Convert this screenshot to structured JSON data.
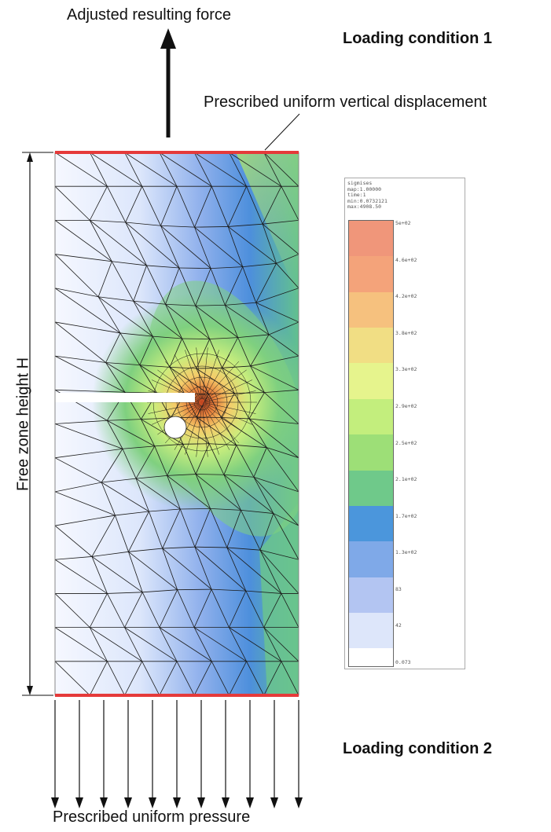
{
  "title_top": "Adjusted resulting force",
  "loading_condition_1": "Loading condition 1",
  "loading_condition_2": "Loading condition 2",
  "top_bc_label": "Prescribed uniform vertical displacement",
  "bottom_bc_label": "Prescribed uniform pressure",
  "height_label": "Free zone height H",
  "legend": {
    "lines": [
      "sigmises",
      "map:1.00000",
      "time:1",
      "min:0.0732121",
      "max:4908.50"
    ],
    "ticks": [
      "5e+02",
      "4.6e+02",
      "4.2e+02",
      "3.8e+02",
      "3.3e+02",
      "2.9e+02",
      "2.5e+02",
      "2.1e+02",
      "1.7e+02",
      "1.3e+02",
      "83",
      "42",
      "0.073"
    ],
    "band_colors": [
      "#f0967a",
      "#f4a37a",
      "#f6c17e",
      "#f1de84",
      "#e6f48d",
      "#c3ee7d",
      "#9ddf77",
      "#6fc98a",
      "#4b96dc",
      "#7fa9e8",
      "#b3c5f2",
      "#dde6fa",
      "#ffffff"
    ]
  },
  "colors": {
    "bc_line": "#e53a3a",
    "mesh_line": "#1a1a1a"
  }
}
